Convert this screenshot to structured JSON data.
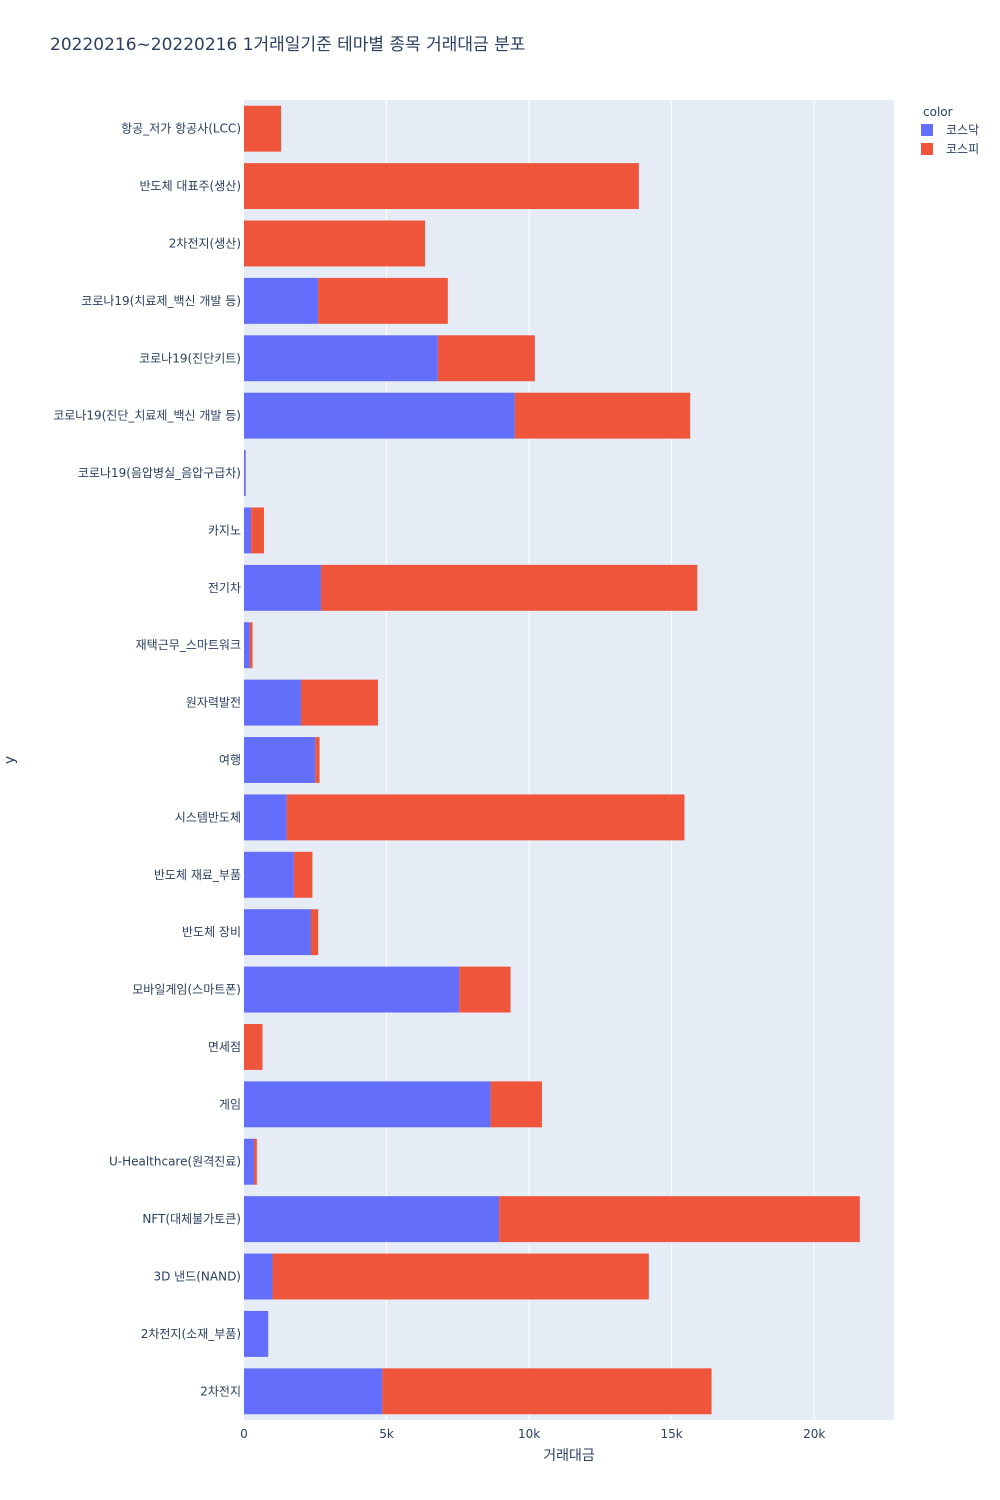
{
  "chart_data": {
    "type": "bar",
    "orientation": "horizontal",
    "barmode": "stack",
    "title": "20220216~20220216 1거래일기준 테마별 종목 거래대금 분포",
    "xlabel": "거래대금",
    "ylabel": "y",
    "xlim": [
      0,
      22800
    ],
    "x_ticks": [
      0,
      5000,
      10000,
      15000,
      20000
    ],
    "x_tick_labels": [
      "0",
      "5k",
      "10k",
      "15k",
      "20k"
    ],
    "grid": true,
    "legend": {
      "title": "color",
      "position": "top-right"
    },
    "categories": [
      "항공_저가 항공사(LCC)",
      "반도체 대표주(생산)",
      "2차전지(생산)",
      "코로나19(치료제_백신 개발 등)",
      "코로나19(진단키트)",
      "코로나19(진단_치료제_백신 개발 등)",
      "코로나19(음압병실_음압구급차)",
      "카지노",
      "전기차",
      "재택근무_스마트워크",
      "원자력발전",
      "여행",
      "시스템반도체",
      "반도체 재료_부품",
      "반도체 장비",
      "모바일게임(스마트폰)",
      "면세점",
      "게임",
      "U-Healthcare(원격진료)",
      "NFT(대체불가토큰)",
      "3D 낸드(NAND)",
      "2차전지(소재_부품)",
      "2차전지"
    ],
    "series": [
      {
        "name": "코스닥",
        "color": "#636efa",
        "values": [
          0,
          0,
          0,
          2600,
          6800,
          9500,
          60,
          250,
          2700,
          200,
          2000,
          2500,
          1500,
          1750,
          2350,
          7550,
          0,
          8650,
          350,
          8950,
          1000,
          850,
          4850
        ]
      },
      {
        "name": "코스피",
        "color": "#ef553b",
        "values": [
          1300,
          13850,
          6350,
          4550,
          3400,
          6150,
          0,
          450,
          13200,
          100,
          2700,
          150,
          13950,
          650,
          250,
          1800,
          650,
          1800,
          100,
          12650,
          13200,
          0,
          11550
        ]
      }
    ]
  }
}
